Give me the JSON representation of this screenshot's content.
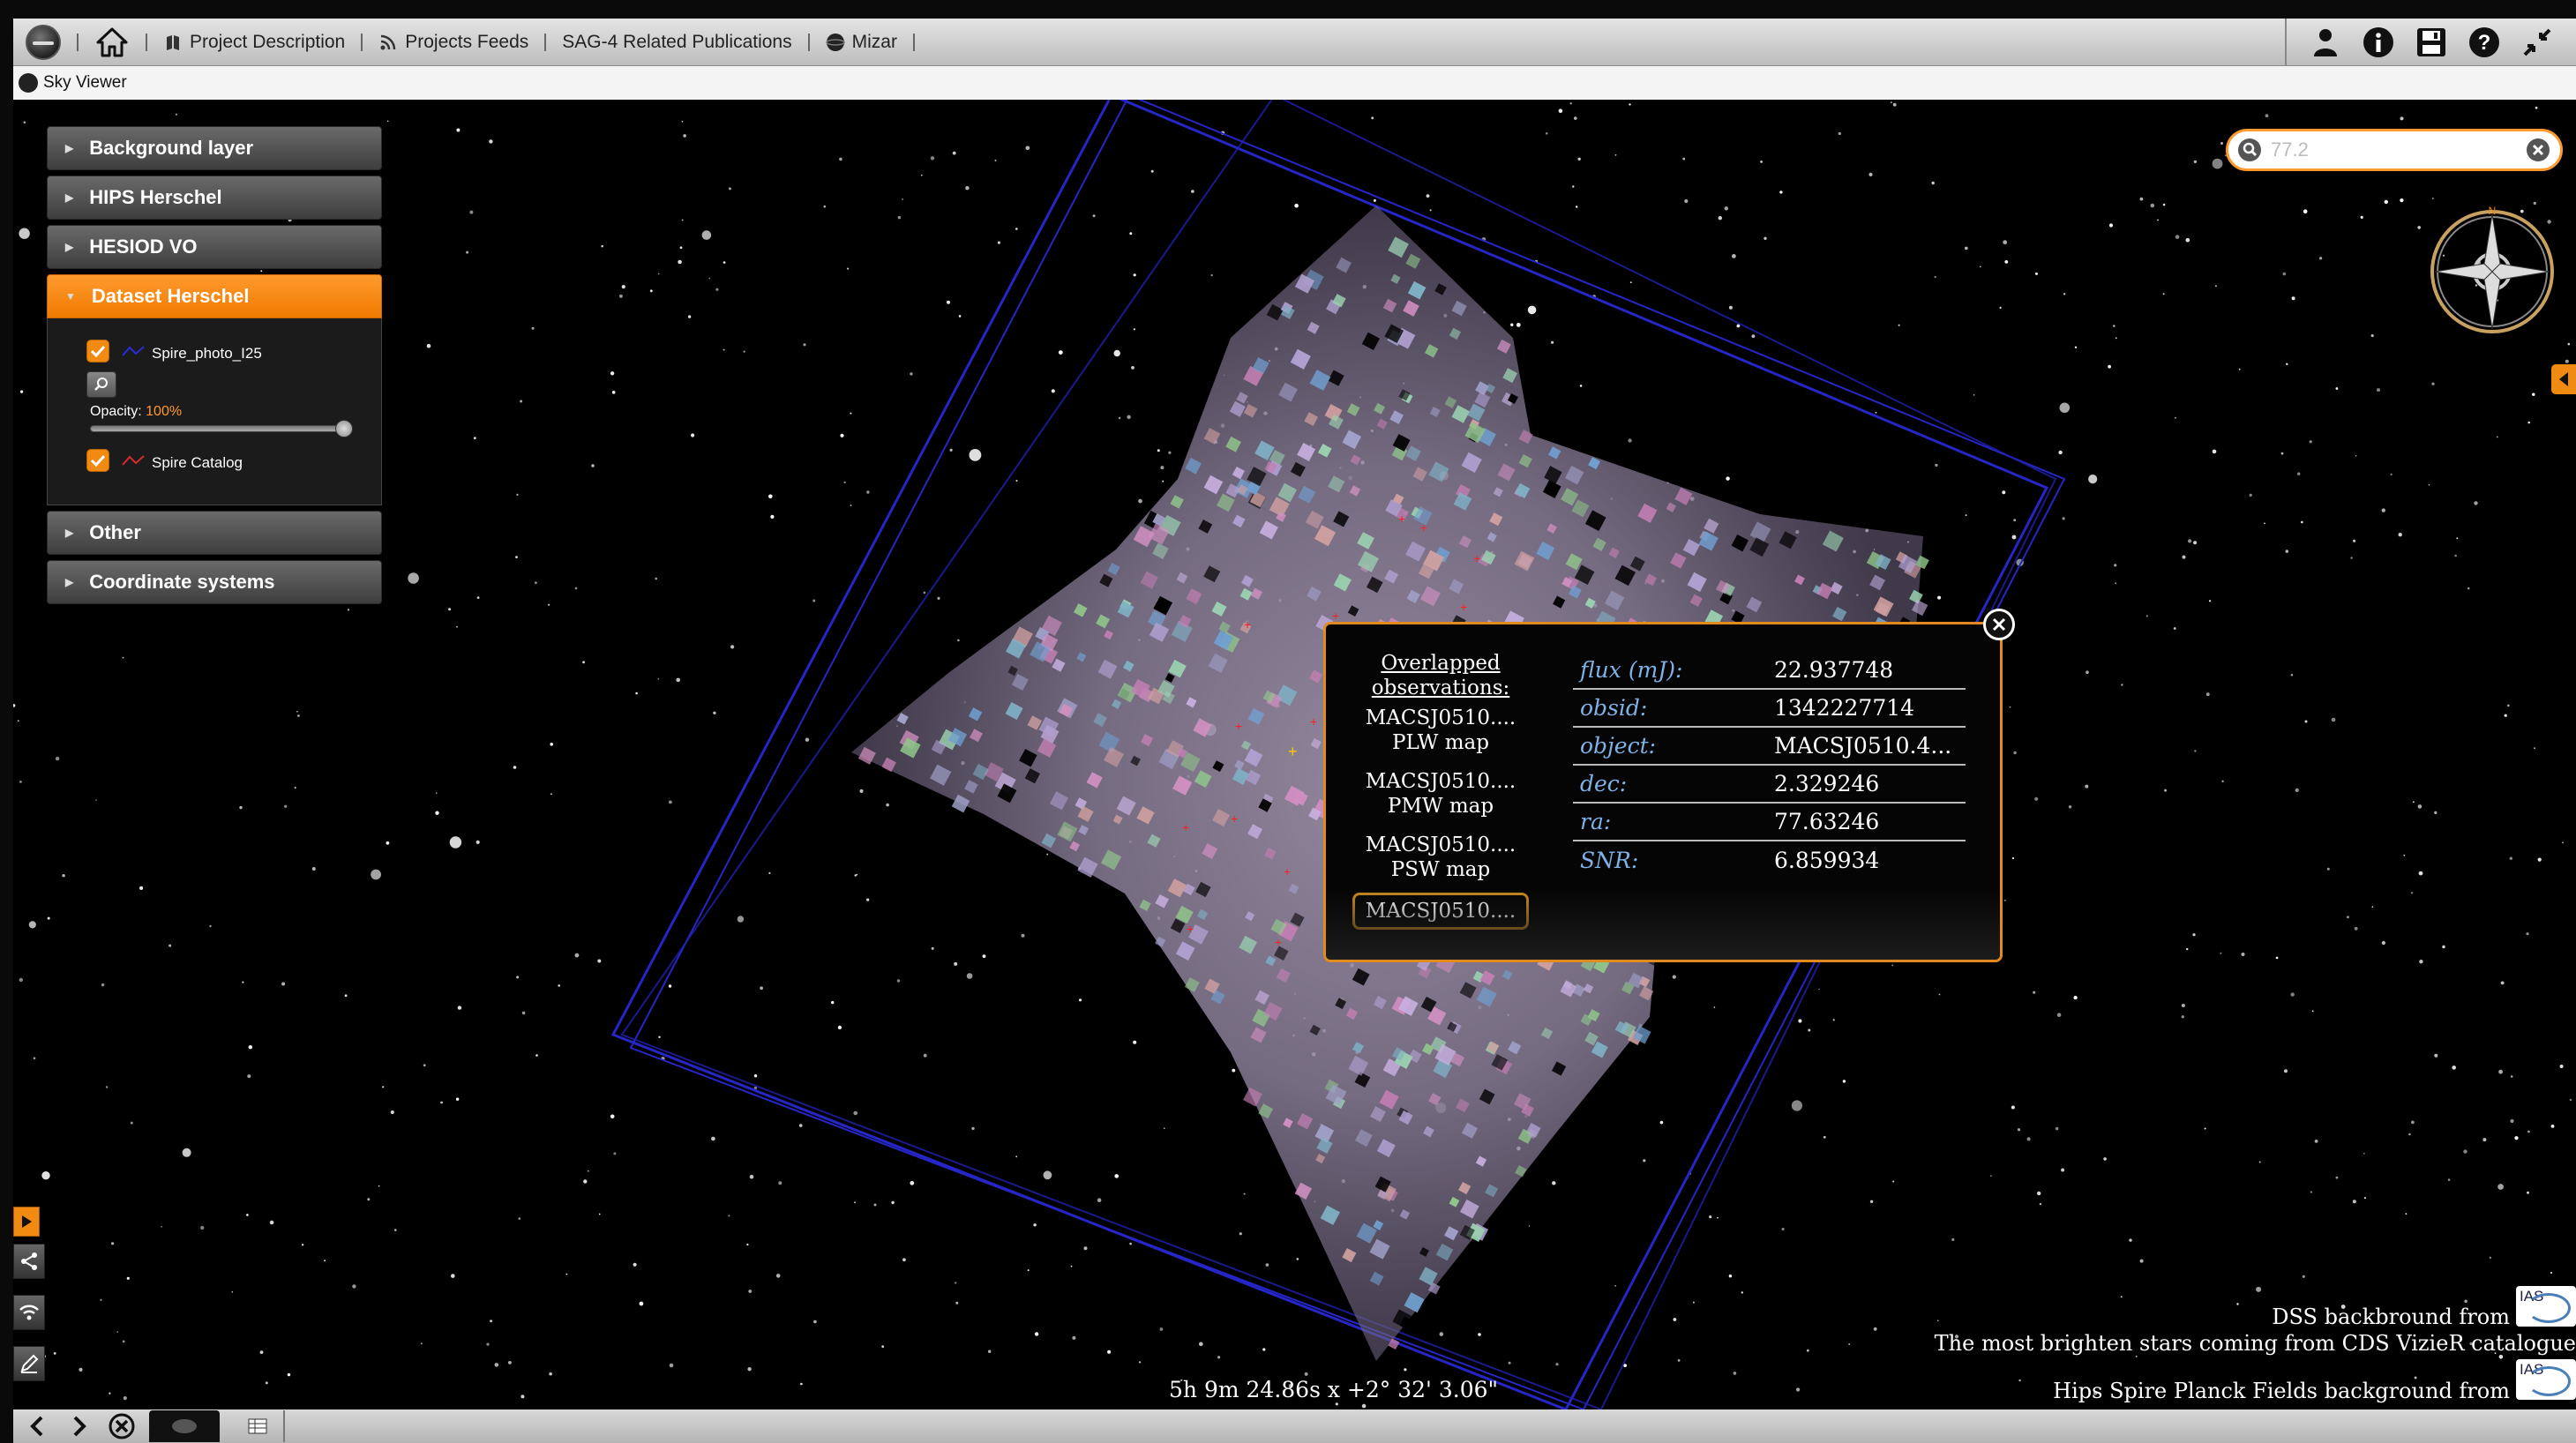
{
  "toolbar": {
    "links": [
      {
        "label": "Project Description",
        "icon": "book-icon"
      },
      {
        "label": "Projects Feeds",
        "icon": "rss-icon"
      },
      {
        "label": "SAG-4 Related Publications",
        "icon": ""
      },
      {
        "label": "Mizar",
        "icon": "mizar-logo-icon"
      }
    ],
    "right_icons": [
      "user-icon",
      "info-icon",
      "save-icon",
      "help-icon",
      "collapse-icon"
    ]
  },
  "tab": {
    "label": "Sky Viewer"
  },
  "layers": {
    "sections": [
      {
        "label": "Background layer",
        "expanded": false
      },
      {
        "label": "HIPS Herschel",
        "expanded": false
      },
      {
        "label": "HESIOD VO",
        "expanded": false
      },
      {
        "label": "Dataset Herschel",
        "expanded": true
      },
      {
        "label": "Other",
        "expanded": false
      },
      {
        "label": "Coordinate systems",
        "expanded": false
      }
    ],
    "dataset": {
      "layer1_name": "Spire_photo_I25",
      "layer1_checked": true,
      "opacity_label": "Opacity:",
      "opacity_value": "100%",
      "opacity_fraction": 1.0,
      "layer2_name": "Spire Catalog",
      "layer2_checked": true
    }
  },
  "search": {
    "placeholder": "77.2"
  },
  "popup": {
    "obs_title": "Overlapped observations:",
    "observations": [
      {
        "name": "MACSJ0510....",
        "type": "PLW map"
      },
      {
        "name": "MACSJ0510....",
        "type": "PMW map"
      },
      {
        "name": "MACSJ0510....",
        "type": "PSW map"
      }
    ],
    "selected_observation": "MACSJ0510....",
    "attributes": [
      {
        "key": "flux (mJ):",
        "value": "22.937748"
      },
      {
        "key": "obsid:",
        "value": "1342227714"
      },
      {
        "key": "object:",
        "value": "MACSJ0510.4..."
      },
      {
        "key": "dec:",
        "value": "2.329246"
      },
      {
        "key": "ra:",
        "value": "77.63246"
      },
      {
        "key": "SNR:",
        "value": "6.859934"
      }
    ]
  },
  "coords": {
    "text": "5h 9m 24.86s x +2° 32' 3.06\""
  },
  "credits": {
    "dss": "DSS backbround from",
    "cds": "The most brighten stars coming from CDS VizieR catalogue",
    "hips": "Hips Spire Planck Fields background from",
    "logo": "IAS"
  },
  "colors": {
    "accent": "#f08a10",
    "popup_border": "#e08a20",
    "attr_key": "#7fb2e8",
    "footprint": "#2a2ad0"
  }
}
